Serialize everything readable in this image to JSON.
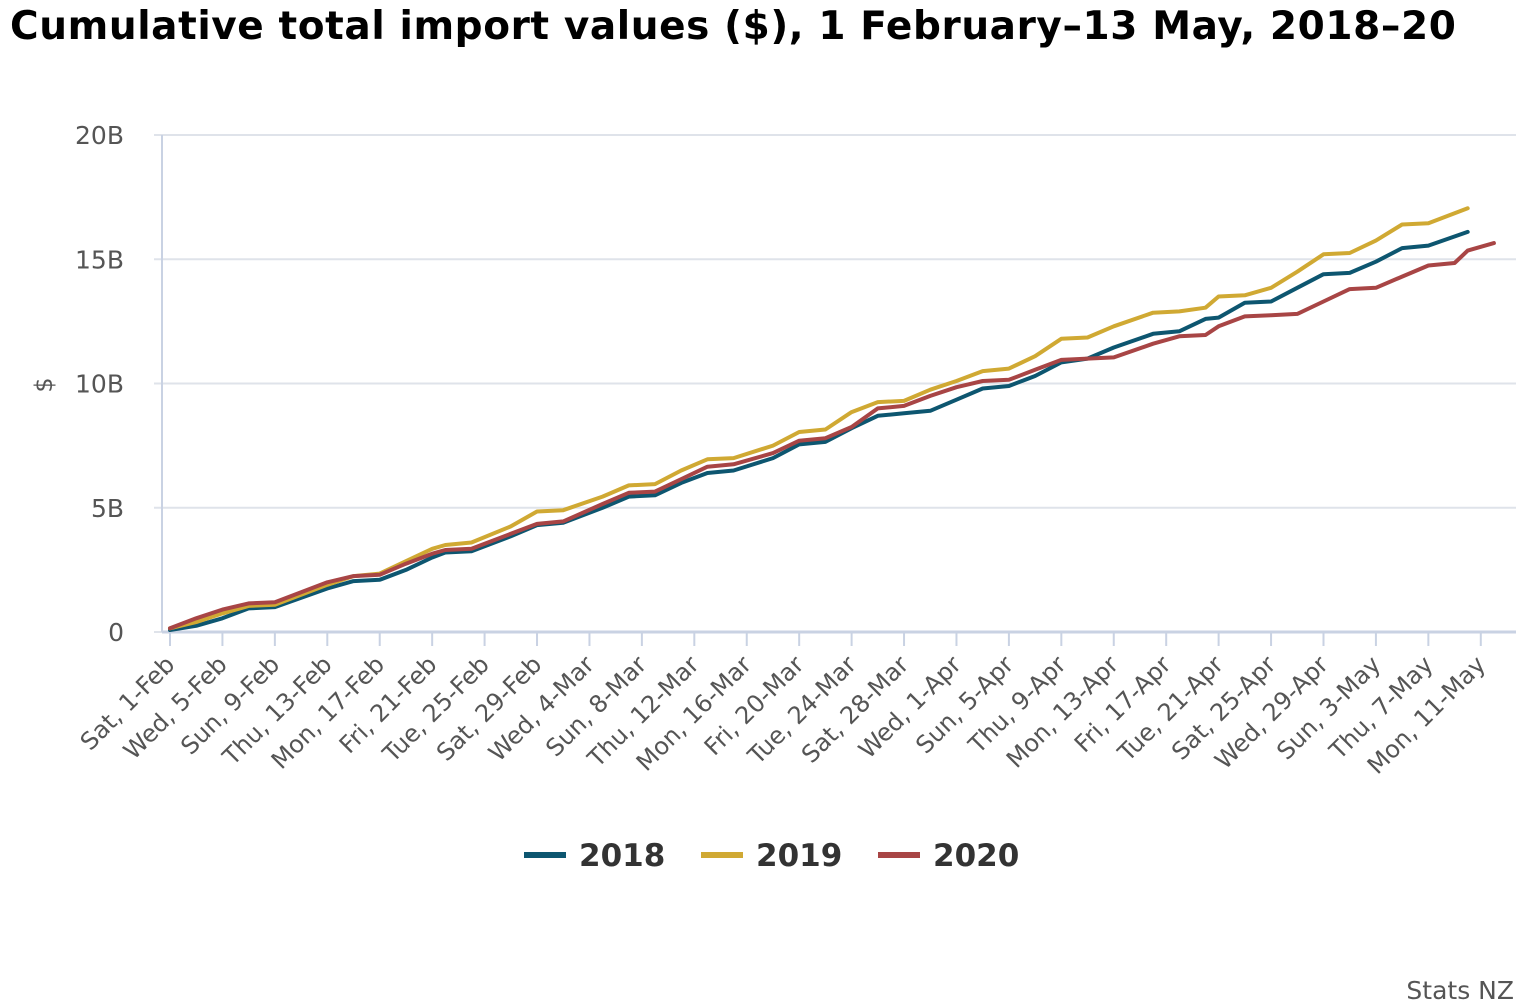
{
  "chart_data": {
    "type": "line",
    "title": "Cumulative total import values ($), 1 February–13 May, 2018–20",
    "xlabel": "",
    "ylabel": "$",
    "y_ticks": [
      {
        "value": 0,
        "label": "0"
      },
      {
        "value": 5000000000,
        "label": "5B"
      },
      {
        "value": 10000000000,
        "label": "10B"
      },
      {
        "value": 15000000000,
        "label": "15B"
      },
      {
        "value": 20000000000,
        "label": "20B"
      }
    ],
    "ylim": [
      0,
      20000000000
    ],
    "x_range_days": [
      0,
      102
    ],
    "x_ticks": [
      {
        "day": 0,
        "label": "Sat, 1-Feb"
      },
      {
        "day": 4,
        "label": "Wed, 5-Feb"
      },
      {
        "day": 8,
        "label": "Sun, 9-Feb"
      },
      {
        "day": 12,
        "label": "Thu, 13-Feb"
      },
      {
        "day": 16,
        "label": "Mon, 17-Feb"
      },
      {
        "day": 20,
        "label": "Fri, 21-Feb"
      },
      {
        "day": 24,
        "label": "Tue, 25-Feb"
      },
      {
        "day": 28,
        "label": "Sat, 29-Feb"
      },
      {
        "day": 32,
        "label": "Wed, 4-Mar"
      },
      {
        "day": 36,
        "label": "Sun, 8-Mar"
      },
      {
        "day": 40,
        "label": "Thu, 12-Mar"
      },
      {
        "day": 44,
        "label": "Mon, 16-Mar"
      },
      {
        "day": 48,
        "label": "Fri, 20-Mar"
      },
      {
        "day": 52,
        "label": "Tue, 24-Mar"
      },
      {
        "day": 56,
        "label": "Sat, 28-Mar"
      },
      {
        "day": 60,
        "label": "Wed, 1-Apr"
      },
      {
        "day": 64,
        "label": "Sun, 5-Apr"
      },
      {
        "day": 68,
        "label": "Thu, 9-Apr"
      },
      {
        "day": 72,
        "label": "Mon, 13-Apr"
      },
      {
        "day": 76,
        "label": "Fri, 17-Apr"
      },
      {
        "day": 80,
        "label": "Tue, 21-Apr"
      },
      {
        "day": 84,
        "label": "Sat, 25-Apr"
      },
      {
        "day": 88,
        "label": "Wed, 29-Apr"
      },
      {
        "day": 92,
        "label": "Sun, 3-May"
      },
      {
        "day": 96,
        "label": "Thu, 7-May"
      },
      {
        "day": 100,
        "label": "Mon, 11-May"
      }
    ],
    "grid": true,
    "legend_position": "bottom-center",
    "series": [
      {
        "name": "2018",
        "color": "#0d5670",
        "points": [
          [
            0,
            0.08
          ],
          [
            2,
            0.25
          ],
          [
            4,
            0.55
          ],
          [
            6,
            0.95
          ],
          [
            8,
            1.0
          ],
          [
            12,
            1.75
          ],
          [
            14,
            2.05
          ],
          [
            16,
            2.1
          ],
          [
            18,
            2.5
          ],
          [
            20,
            3.0
          ],
          [
            21,
            3.2
          ],
          [
            23,
            3.25
          ],
          [
            26,
            3.85
          ],
          [
            28,
            4.3
          ],
          [
            30,
            4.4
          ],
          [
            33,
            5.0
          ],
          [
            35,
            5.45
          ],
          [
            37,
            5.5
          ],
          [
            39,
            6.0
          ],
          [
            41,
            6.4
          ],
          [
            43,
            6.5
          ],
          [
            46,
            7.0
          ],
          [
            48,
            7.55
          ],
          [
            50,
            7.65
          ],
          [
            52,
            8.2
          ],
          [
            54,
            8.7
          ],
          [
            56,
            8.8
          ],
          [
            58,
            8.9
          ],
          [
            60,
            9.35
          ],
          [
            62,
            9.8
          ],
          [
            64,
            9.9
          ],
          [
            66,
            10.3
          ],
          [
            68,
            10.85
          ],
          [
            70,
            11.0
          ],
          [
            72,
            11.45
          ],
          [
            75,
            12.0
          ],
          [
            77,
            12.1
          ],
          [
            79,
            12.6
          ],
          [
            80,
            12.65
          ],
          [
            82,
            13.25
          ],
          [
            84,
            13.3
          ],
          [
            86,
            13.85
          ],
          [
            88,
            14.4
          ],
          [
            90,
            14.45
          ],
          [
            92,
            14.9
          ],
          [
            94,
            15.45
          ],
          [
            96,
            15.55
          ],
          [
            99,
            16.1
          ]
        ]
      },
      {
        "name": "2019",
        "color": "#d0a933",
        "points": [
          [
            0,
            0.15
          ],
          [
            2,
            0.4
          ],
          [
            4,
            0.75
          ],
          [
            6,
            1.05
          ],
          [
            8,
            1.1
          ],
          [
            12,
            1.9
          ],
          [
            14,
            2.25
          ],
          [
            16,
            2.35
          ],
          [
            18,
            2.85
          ],
          [
            20,
            3.35
          ],
          [
            21,
            3.5
          ],
          [
            23,
            3.6
          ],
          [
            26,
            4.25
          ],
          [
            28,
            4.85
          ],
          [
            30,
            4.9
          ],
          [
            33,
            5.45
          ],
          [
            35,
            5.9
          ],
          [
            37,
            5.95
          ],
          [
            39,
            6.5
          ],
          [
            41,
            6.95
          ],
          [
            43,
            7.0
          ],
          [
            46,
            7.5
          ],
          [
            48,
            8.05
          ],
          [
            50,
            8.15
          ],
          [
            52,
            8.85
          ],
          [
            54,
            9.25
          ],
          [
            56,
            9.3
          ],
          [
            58,
            9.75
          ],
          [
            60,
            10.1
          ],
          [
            62,
            10.5
          ],
          [
            64,
            10.6
          ],
          [
            66,
            11.1
          ],
          [
            68,
            11.8
          ],
          [
            70,
            11.85
          ],
          [
            72,
            12.3
          ],
          [
            75,
            12.85
          ],
          [
            77,
            12.9
          ],
          [
            79,
            13.05
          ],
          [
            80,
            13.5
          ],
          [
            82,
            13.55
          ],
          [
            84,
            13.85
          ],
          [
            86,
            14.5
          ],
          [
            88,
            15.2
          ],
          [
            90,
            15.25
          ],
          [
            92,
            15.75
          ],
          [
            94,
            16.4
          ],
          [
            96,
            16.45
          ],
          [
            99,
            17.05
          ]
        ]
      },
      {
        "name": "2020",
        "color": "#a84545",
        "points": [
          [
            0,
            0.15
          ],
          [
            2,
            0.55
          ],
          [
            4,
            0.9
          ],
          [
            6,
            1.15
          ],
          [
            8,
            1.2
          ],
          [
            12,
            2.0
          ],
          [
            14,
            2.25
          ],
          [
            16,
            2.3
          ],
          [
            18,
            2.75
          ],
          [
            20,
            3.15
          ],
          [
            21,
            3.3
          ],
          [
            23,
            3.35
          ],
          [
            26,
            3.95
          ],
          [
            28,
            4.35
          ],
          [
            30,
            4.45
          ],
          [
            33,
            5.15
          ],
          [
            35,
            5.6
          ],
          [
            37,
            5.65
          ],
          [
            39,
            6.15
          ],
          [
            41,
            6.65
          ],
          [
            43,
            6.75
          ],
          [
            46,
            7.2
          ],
          [
            48,
            7.7
          ],
          [
            50,
            7.8
          ],
          [
            52,
            8.25
          ],
          [
            54,
            9.0
          ],
          [
            56,
            9.1
          ],
          [
            58,
            9.5
          ],
          [
            60,
            9.85
          ],
          [
            62,
            10.1
          ],
          [
            64,
            10.15
          ],
          [
            66,
            10.55
          ],
          [
            68,
            10.95
          ],
          [
            70,
            11.0
          ],
          [
            72,
            11.05
          ],
          [
            75,
            11.6
          ],
          [
            77,
            11.9
          ],
          [
            79,
            11.95
          ],
          [
            80,
            12.3
          ],
          [
            82,
            12.7
          ],
          [
            84,
            12.75
          ],
          [
            86,
            12.8
          ],
          [
            88,
            13.3
          ],
          [
            90,
            13.8
          ],
          [
            92,
            13.85
          ],
          [
            94,
            14.3
          ],
          [
            96,
            14.75
          ],
          [
            98,
            14.85
          ],
          [
            99,
            15.35
          ],
          [
            100,
            15.5
          ],
          [
            101,
            15.65
          ]
        ]
      }
    ],
    "credit": "Stats NZ"
  }
}
